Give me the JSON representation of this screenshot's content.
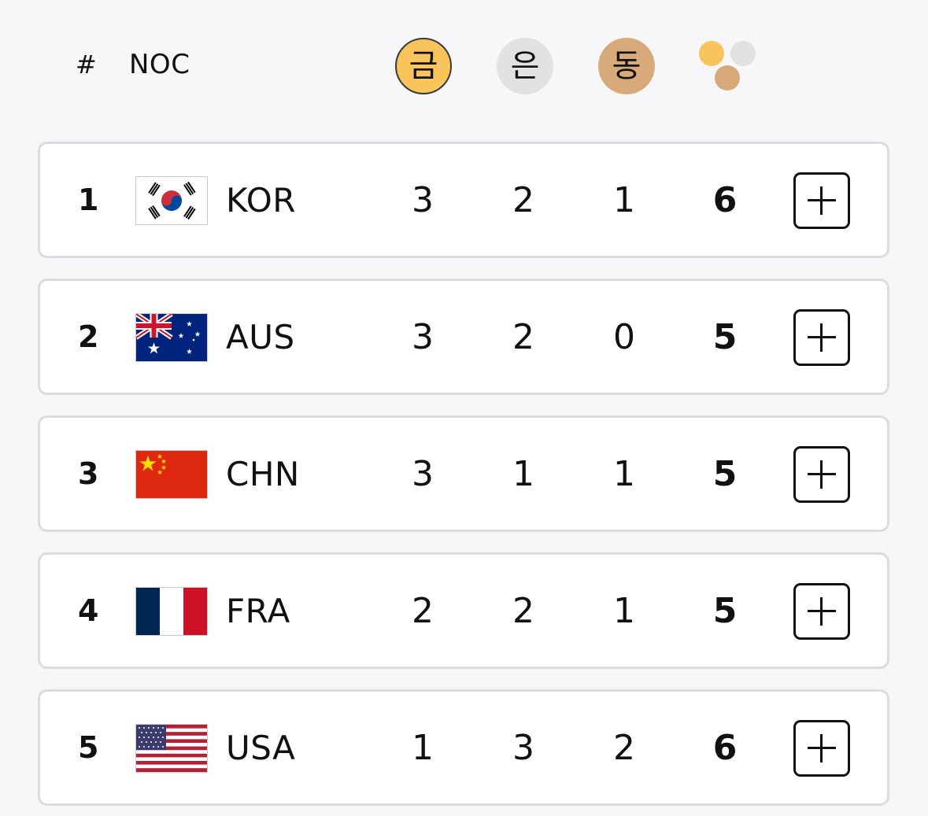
{
  "header": {
    "rank_label": "#",
    "noc_label": "NOC",
    "gold_label": "금",
    "silver_label": "은",
    "bronze_label": "동",
    "total_icon": "medal-total-dots-icon"
  },
  "colors": {
    "gold": "#f9c45c",
    "silver": "#e2e2e4",
    "bronze": "#d8aa7a",
    "row_border": "#dcdcdf"
  },
  "rows": [
    {
      "rank": "1",
      "noc": "KOR",
      "flag": "kor-flag-icon",
      "gold": "3",
      "silver": "2",
      "bronze": "1",
      "total": "6",
      "expand_icon": "plus-icon"
    },
    {
      "rank": "2",
      "noc": "AUS",
      "flag": "aus-flag-icon",
      "gold": "3",
      "silver": "2",
      "bronze": "0",
      "total": "5",
      "expand_icon": "plus-icon"
    },
    {
      "rank": "3",
      "noc": "CHN",
      "flag": "chn-flag-icon",
      "gold": "3",
      "silver": "1",
      "bronze": "1",
      "total": "5",
      "expand_icon": "plus-icon"
    },
    {
      "rank": "4",
      "noc": "FRA",
      "flag": "fra-flag-icon",
      "gold": "2",
      "silver": "2",
      "bronze": "1",
      "total": "5",
      "expand_icon": "plus-icon"
    },
    {
      "rank": "5",
      "noc": "USA",
      "flag": "usa-flag-icon",
      "gold": "1",
      "silver": "3",
      "bronze": "2",
      "total": "6",
      "expand_icon": "plus-icon"
    }
  ]
}
